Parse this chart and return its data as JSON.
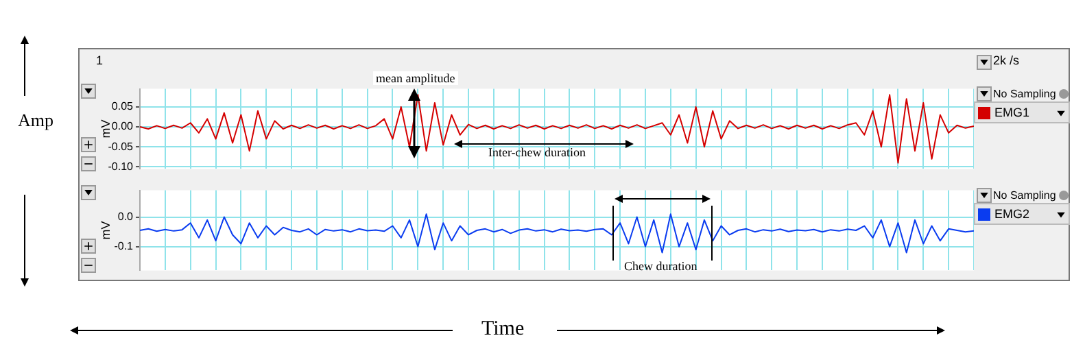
{
  "chart_data": [
    {
      "type": "line",
      "ylabel": "mV",
      "grid": true,
      "legend": "right",
      "tick_labels": "y",
      "annotations": [
        "mean amplitude",
        "Inter-chew duration",
        "1",
        "2k /s",
        "No Sampling",
        "Amp",
        "Time"
      ],
      "categories": [
        null,
        null,
        null,
        null,
        null,
        null,
        null,
        null,
        null,
        null,
        null,
        null,
        null,
        null,
        null,
        null,
        null,
        null,
        null,
        null,
        null,
        null,
        null,
        null,
        null,
        null,
        null,
        null,
        null,
        null,
        null,
        null,
        null,
        null,
        null,
        null,
        null,
        null,
        null,
        null,
        null,
        null,
        null,
        null,
        null,
        null,
        null,
        null,
        null,
        null,
        null,
        null,
        null,
        null,
        null,
        null,
        null,
        null,
        null,
        null,
        null,
        null,
        null,
        null,
        null,
        null,
        null,
        null,
        null,
        null,
        null,
        null,
        null,
        null,
        null,
        null,
        null,
        null,
        null,
        null,
        null,
        null,
        null,
        null,
        null,
        null,
        null,
        null,
        null,
        null,
        null,
        null,
        null,
        null,
        null,
        null,
        null,
        null,
        null,
        null
      ],
      "ylim": [
        -0.105,
        0.095
      ],
      "yticks": [
        {
          "value": 0.05,
          "label": "0.05"
        },
        {
          "value": 0,
          "label": "0.00"
        },
        {
          "value": -0.05,
          "label": "-0.05"
        },
        {
          "value": -0.1,
          "label": "-0.10"
        }
      ],
      "series": [
        {
          "name": "EMG1",
          "color": "#d40000",
          "values": [
            0.0,
            -0.005,
            0.003,
            -0.004,
            0.004,
            -0.003,
            0.01,
            -0.015,
            0.02,
            -0.03,
            0.035,
            -0.04,
            0.03,
            -0.06,
            0.04,
            -0.03,
            0.015,
            -0.005,
            0.004,
            -0.004,
            0.005,
            -0.003,
            0.004,
            -0.005,
            0.003,
            -0.004,
            0.005,
            -0.004,
            0.003,
            0.02,
            -0.03,
            0.05,
            -0.05,
            0.08,
            -0.06,
            0.06,
            -0.045,
            0.03,
            -0.02,
            0.006,
            -0.004,
            0.004,
            -0.005,
            0.003,
            -0.004,
            0.005,
            -0.003,
            0.004,
            -0.005,
            0.003,
            -0.004,
            0.004,
            -0.003,
            0.005,
            -0.004,
            0.003,
            -0.005,
            0.004,
            -0.003,
            0.005,
            -0.004,
            0.003,
            0.01,
            -0.02,
            0.03,
            -0.04,
            0.05,
            -0.05,
            0.04,
            -0.03,
            0.015,
            -0.004,
            0.004,
            -0.003,
            0.005,
            -0.004,
            0.003,
            -0.005,
            0.004,
            -0.003,
            0.004,
            -0.005,
            0.003,
            -0.004,
            0.005,
            0.01,
            -0.02,
            0.04,
            -0.05,
            0.08,
            -0.09,
            0.07,
            -0.06,
            0.06,
            -0.08,
            0.03,
            -0.015,
            0.004,
            -0.003,
            0.002
          ]
        }
      ]
    },
    {
      "type": "line",
      "ylabel": "mV",
      "grid": true,
      "legend": "right",
      "tick_labels": "y",
      "annotations": [
        "Chew duration",
        "No Sampling"
      ],
      "categories": [
        null,
        null,
        null,
        null,
        null,
        null,
        null,
        null,
        null,
        null,
        null,
        null,
        null,
        null,
        null,
        null,
        null,
        null,
        null,
        null,
        null,
        null,
        null,
        null,
        null,
        null,
        null,
        null,
        null,
        null,
        null,
        null,
        null,
        null,
        null,
        null,
        null,
        null,
        null,
        null,
        null,
        null,
        null,
        null,
        null,
        null,
        null,
        null,
        null,
        null,
        null,
        null,
        null,
        null,
        null,
        null,
        null,
        null,
        null,
        null,
        null,
        null,
        null,
        null,
        null,
        null,
        null,
        null,
        null,
        null,
        null,
        null,
        null,
        null,
        null,
        null,
        null,
        null,
        null,
        null,
        null,
        null,
        null,
        null,
        null,
        null,
        null,
        null,
        null,
        null,
        null,
        null,
        null,
        null,
        null,
        null,
        null,
        null,
        null,
        null
      ],
      "ylim": [
        -0.18,
        0.09
      ],
      "yticks": [
        {
          "value": 0,
          "label": "0.0"
        },
        {
          "value": -0.1,
          "label": "-0.1"
        }
      ],
      "series": [
        {
          "name": "EMG2",
          "color": "#0a3cf0",
          "values": [
            -0.045,
            -0.04,
            -0.048,
            -0.042,
            -0.047,
            -0.043,
            -0.02,
            -0.07,
            -0.01,
            -0.08,
            0.0,
            -0.06,
            -0.09,
            -0.02,
            -0.07,
            -0.03,
            -0.06,
            -0.035,
            -0.045,
            -0.05,
            -0.04,
            -0.06,
            -0.042,
            -0.047,
            -0.043,
            -0.05,
            -0.04,
            -0.046,
            -0.044,
            -0.048,
            -0.03,
            -0.07,
            -0.01,
            -0.1,
            0.01,
            -0.11,
            -0.02,
            -0.08,
            -0.03,
            -0.06,
            -0.045,
            -0.04,
            -0.05,
            -0.042,
            -0.055,
            -0.044,
            -0.04,
            -0.047,
            -0.043,
            -0.05,
            -0.041,
            -0.046,
            -0.044,
            -0.048,
            -0.042,
            -0.04,
            -0.06,
            -0.02,
            -0.09,
            0.0,
            -0.1,
            -0.01,
            -0.12,
            0.01,
            -0.1,
            -0.02,
            -0.11,
            -0.01,
            -0.08,
            -0.03,
            -0.06,
            -0.045,
            -0.04,
            -0.05,
            -0.043,
            -0.047,
            -0.041,
            -0.049,
            -0.044,
            -0.046,
            -0.042,
            -0.05,
            -0.043,
            -0.047,
            -0.041,
            -0.045,
            -0.03,
            -0.07,
            -0.01,
            -0.1,
            -0.02,
            -0.12,
            -0.01,
            -0.09,
            -0.03,
            -0.08,
            -0.04,
            -0.045,
            -0.05,
            -0.047
          ]
        }
      ]
    }
  ]
}
